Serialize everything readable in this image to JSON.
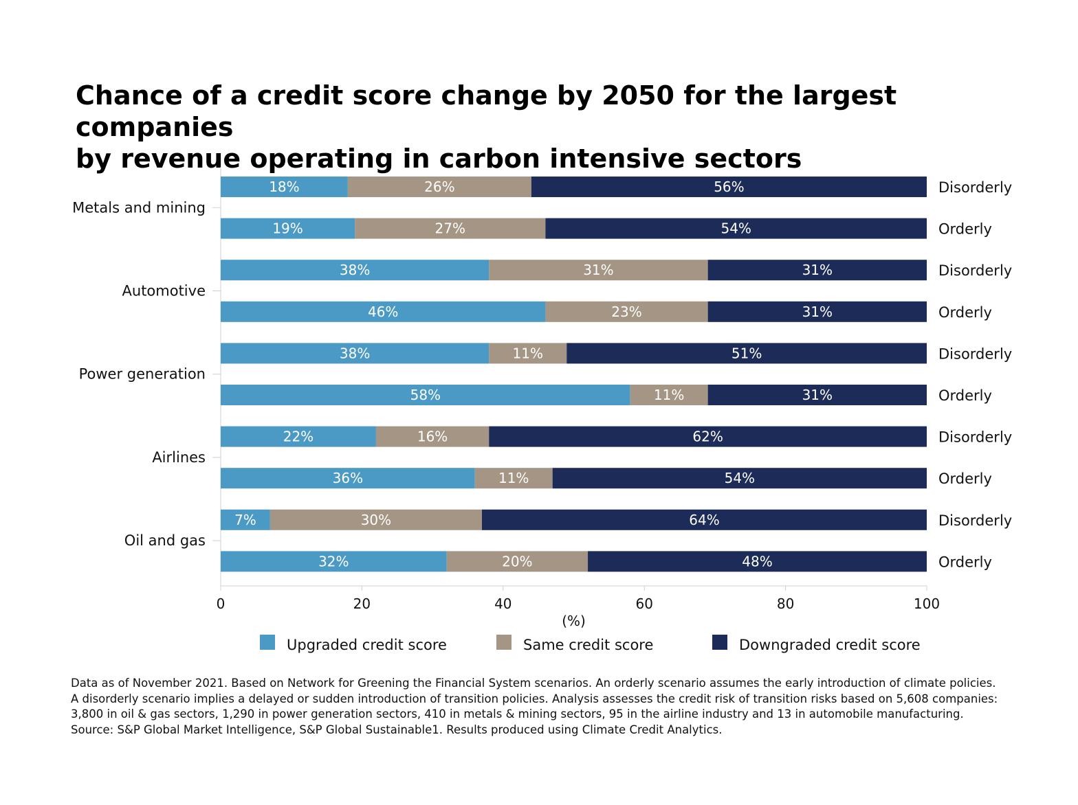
{
  "chart_data": {
    "type": "bar",
    "orientation": "horizontal",
    "stacked": true,
    "title_lines": [
      "Chance of a credit score change by 2050 for the largest companies",
      "by revenue operating in carbon intensive sectors"
    ],
    "xlabel": "(%)",
    "xlim": [
      0,
      100
    ],
    "x_ticks": [
      "0",
      "20",
      "40",
      "60",
      "80",
      "100"
    ],
    "grid": false,
    "legend_position": "bottom",
    "series": [
      {
        "name": "Upgraded credit score",
        "color": "#4b9ac6"
      },
      {
        "name": "Same credit score",
        "color": "#a59585"
      },
      {
        "name": "Downgraded credit score",
        "color": "#1d2b58"
      }
    ],
    "groups": [
      {
        "category": "Metals and mining",
        "bars": [
          {
            "scenario": "Disorderly",
            "values": [
              18,
              26,
              56
            ],
            "labels": [
              "18%",
              "26%",
              "56%"
            ]
          },
          {
            "scenario": "Orderly",
            "values": [
              19,
              27,
              54
            ],
            "labels": [
              "19%",
              "27%",
              "54%"
            ]
          }
        ]
      },
      {
        "category": "Automotive",
        "bars": [
          {
            "scenario": "Disorderly",
            "values": [
              38,
              31,
              31
            ],
            "labels": [
              "38%",
              "31%",
              "31%"
            ]
          },
          {
            "scenario": "Orderly",
            "values": [
              46,
              23,
              31
            ],
            "labels": [
              "46%",
              "23%",
              "31%"
            ]
          }
        ]
      },
      {
        "category": "Power generation",
        "bars": [
          {
            "scenario": "Disorderly",
            "values": [
              38,
              11,
              51
            ],
            "labels": [
              "38%",
              "11%",
              "51%"
            ]
          },
          {
            "scenario": "Orderly",
            "values": [
              58,
              11,
              31
            ],
            "labels": [
              "58%",
              "11%",
              "31%"
            ]
          }
        ]
      },
      {
        "category": "Airlines",
        "bars": [
          {
            "scenario": "Disorderly",
            "values": [
              22,
              16,
              62
            ],
            "labels": [
              "22%",
              "16%",
              "62%"
            ]
          },
          {
            "scenario": "Orderly",
            "values": [
              36,
              11,
              54
            ],
            "labels": [
              "36%",
              "11%",
              "54%"
            ]
          }
        ]
      },
      {
        "category": "Oil and gas",
        "bars": [
          {
            "scenario": "Disorderly",
            "values": [
              7,
              30,
              64
            ],
            "labels": [
              "7%",
              "30%",
              "64%"
            ]
          },
          {
            "scenario": "Orderly",
            "values": [
              32,
              20,
              48
            ],
            "labels": [
              "32%",
              "20%",
              "48%"
            ]
          }
        ]
      }
    ]
  },
  "footnote_lines": [
    "Data as of November 2021. Based on Network for Greening the Financial System scenarios. An orderly scenario assumes the early introduction of climate policies.",
    "A disorderly scenario implies a delayed or sudden introduction of transition policies. Analysis assesses the credit risk of transition risks based on 5,608 companies:",
    "3,800 in oil & gas sectors, 1,290 in power generation sectors, 410 in metals & mining sectors, 95 in the airline industry and 13 in automobile manufacturing.",
    "Source: S&P Global Market Intelligence, S&P Global Sustainable1. Results produced using Climate Credit Analytics."
  ]
}
